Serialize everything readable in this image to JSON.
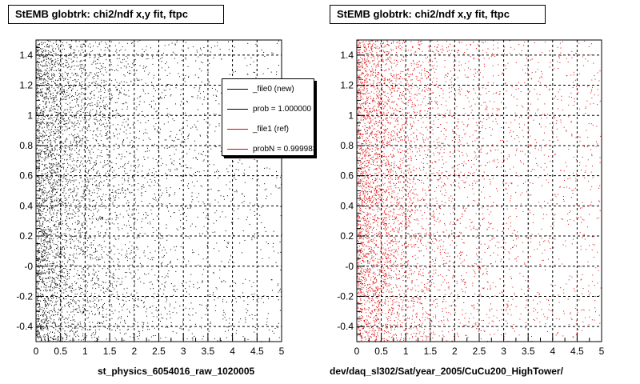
{
  "colors": {
    "file0": "#000000",
    "file1": "#dd0000",
    "grid": "#000000"
  },
  "pads": [
    {
      "title": "StEMB globtrk: chi2/ndf x,y fit, ftpc",
      "xcaption": "st_physics_6054016_raw_1020005",
      "marker_color": "#000000",
      "legend": [
        {
          "label": "_file0 (new)",
          "color": "#000000"
        },
        {
          "label": "prob = 1.000000",
          "color": "#000000"
        },
        {
          "label": "_file1 (ref)",
          "color": "#dd0000"
        },
        {
          "label": "probN = 0.999983",
          "color": "#dd0000"
        }
      ]
    },
    {
      "title": "StEMB globtrk: chi2/ndf x,y fit, ftpc",
      "xcaption": "dev/daq_sl302/Sat/year_2005/CuCu200_HighTower/",
      "marker_color": "#dd0000"
    }
  ],
  "chart_data": [
    {
      "type": "scatter",
      "title": "StEMB globtrk: chi2/ndf x,y fit, ftpc",
      "xlabel": "st_physics_6054016_raw_1020005",
      "xlim": [
        0,
        5
      ],
      "ylim": [
        -0.5,
        1.5
      ],
      "xticks": [
        "0",
        "0.5",
        "1",
        "1.5",
        "2",
        "2.5",
        "3",
        "3.5",
        "4",
        "4.5",
        "5"
      ],
      "yticks": [
        "-0.4",
        "-0.2",
        "-0",
        "0.2",
        "0.4",
        "0.6",
        "0.8",
        "1",
        "1.2",
        "1.4"
      ],
      "grid": true,
      "legend_position": "top-right",
      "series": [
        {
          "name": "_file0 (new)",
          "color": "#000000",
          "distribution": "dense near x=0, thinning with increasing x, uniform in y over [-0.5, 1.5]"
        }
      ]
    },
    {
      "type": "scatter",
      "title": "StEMB globtrk: chi2/ndf x,y fit, ftpc",
      "xlabel": "dev/daq_sl302/Sat/year_2005/CuCu200_HighTower/",
      "xlim": [
        0,
        5
      ],
      "ylim": [
        -0.5,
        1.5
      ],
      "xticks": [
        "0",
        "0.5",
        "1",
        "1.5",
        "2",
        "2.5",
        "3",
        "3.5",
        "4",
        "4.5",
        "5"
      ],
      "yticks": [
        "-0.4",
        "-0.2",
        "-0",
        "0.2",
        "0.4",
        "0.6",
        "0.8",
        "1",
        "1.2",
        "1.4"
      ],
      "grid": true,
      "series": [
        {
          "name": "_file1 (ref)",
          "color": "#dd0000",
          "distribution": "dense near x=0, thinning with increasing x, uniform in y over [-0.5, 1.5]"
        }
      ]
    }
  ]
}
